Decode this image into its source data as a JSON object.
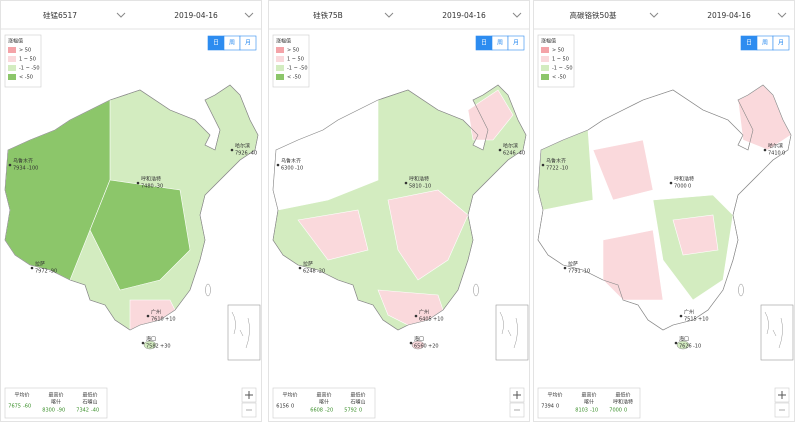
{
  "legend": {
    "title": "涨幅值",
    "items": [
      "> 50",
      "1 ~ 50",
      "-1 ~ -50",
      "< -50"
    ]
  },
  "period_buttons": [
    "日",
    "周",
    "月"
  ],
  "panels": [
    {
      "product": "硅锰6517",
      "date": "2019-04-16",
      "cities": [
        {
          "name": "乌鲁木齐",
          "price": 7934,
          "change": "-100"
        },
        {
          "name": "哈尔滨",
          "price": 7926,
          "change": "-40"
        },
        {
          "name": "呼和浩特",
          "price": 7480,
          "change": "-30"
        },
        {
          "name": "拉萨",
          "price": 7972,
          "change": "-90"
        },
        {
          "name": "广州",
          "price": 7610,
          "change": "+10"
        },
        {
          "name": "海口",
          "price": 7582,
          "change": "+30"
        }
      ],
      "stats": {
        "avg": {
          "label": "平均价",
          "price": 7675,
          "change": "-60"
        },
        "high": {
          "label": "最高价",
          "city": "喀什",
          "price": 8300,
          "change": "-90"
        },
        "low": {
          "label": "最低价",
          "city": "石嘴山",
          "price": 7342,
          "change": "-40"
        }
      }
    },
    {
      "product": "硅铁75B",
      "date": "2019-04-16",
      "cities": [
        {
          "name": "乌鲁木齐",
          "price": 6300,
          "change": "-10"
        },
        {
          "name": "哈尔滨",
          "price": 6246,
          "change": "-40"
        },
        {
          "name": "呼和浩特",
          "price": 5810,
          "change": "-10"
        },
        {
          "name": "拉萨",
          "price": 6248,
          "change": "-20"
        },
        {
          "name": "广州",
          "price": 6405,
          "change": "+10"
        },
        {
          "name": "海口",
          "price": 6560,
          "change": "+20"
        }
      ],
      "stats": {
        "avg": {
          "label": "平均价",
          "price": 6156,
          "change": "0"
        },
        "high": {
          "label": "最高价",
          "city": "喀什",
          "price": 6608,
          "change": "-20"
        },
        "low": {
          "label": "最低价",
          "city": "石嘴山",
          "price": 5792,
          "change": "0"
        }
      }
    },
    {
      "product": "高碳铬铁50基",
      "date": "2019-04-16",
      "cities": [
        {
          "name": "乌鲁木齐",
          "price": 7722,
          "change": "-10"
        },
        {
          "name": "哈尔滨",
          "price": 7410,
          "change": "0"
        },
        {
          "name": "呼和浩特",
          "price": 7000,
          "change": "0"
        },
        {
          "name": "拉萨",
          "price": 7791,
          "change": "-10"
        },
        {
          "name": "广州",
          "price": 7515,
          "change": "+10"
        },
        {
          "name": "海口",
          "price": 7626,
          "change": "-10"
        }
      ],
      "stats": {
        "avg": {
          "label": "平均价",
          "price": 7394,
          "change": "0"
        },
        "high": {
          "label": "最高价",
          "city": "喀什",
          "price": 8103,
          "change": "-10"
        },
        "low": {
          "label": "最低价",
          "city": "呼和浩特",
          "price": 7000,
          "change": "0"
        }
      }
    }
  ]
}
